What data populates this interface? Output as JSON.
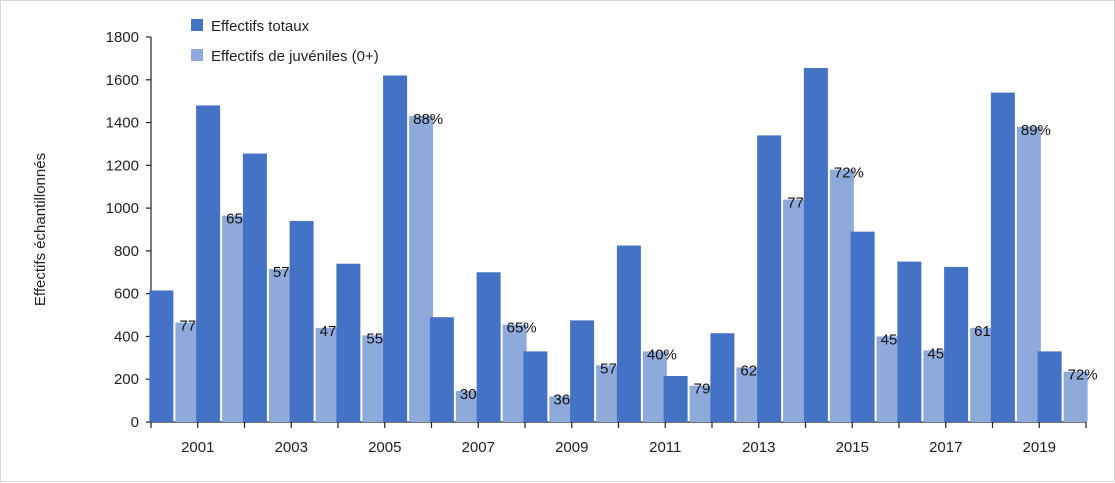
{
  "chart_data": {
    "type": "bar",
    "title": "",
    "xlabel": "",
    "ylabel": "Effectifs échantillonnés",
    "ylim": [
      0,
      1800
    ],
    "yticks": [
      0,
      200,
      400,
      600,
      800,
      1000,
      1200,
      1400,
      1600,
      1800
    ],
    "categories": [
      "2001",
      "2002",
      "2003",
      "2004",
      "2005",
      "2006",
      "2007",
      "2008",
      "2009",
      "2010",
      "2011",
      "2012",
      "2013",
      "2014",
      "2015",
      "2016",
      "2017",
      "2018",
      "2019",
      "2020"
    ],
    "xtick_labels": [
      "2001",
      "2003",
      "2005",
      "2007",
      "2009",
      "2011",
      "2013",
      "2015",
      "2017",
      "2019"
    ],
    "grid": false,
    "legend_position": "top-left",
    "series": [
      {
        "name": "Effectifs totaux",
        "color": "#4472c4",
        "values": [
          615,
          1480,
          1255,
          940,
          740,
          1620,
          490,
          700,
          330,
          475,
          825,
          215,
          415,
          1340,
          1655,
          890,
          750,
          725,
          1540,
          330
        ]
      },
      {
        "name": "Effectifs de juvéniles (0+)",
        "color": "#8eaadb",
        "values": [
          465,
          965,
          715,
          440,
          405,
          1430,
          145,
          455,
          120,
          265,
          330,
          170,
          255,
          1040,
          1180,
          400,
          335,
          440,
          1380,
          235
        ]
      }
    ],
    "annotations": [
      "77%",
      "65%",
      "57%",
      "47%",
      "55%",
      "88%",
      "30%",
      "65%",
      "36%",
      "57%",
      "40%",
      "79%",
      "62%",
      "77%",
      "72%",
      "45%",
      "45%",
      "61%",
      "89%",
      "72%"
    ]
  }
}
